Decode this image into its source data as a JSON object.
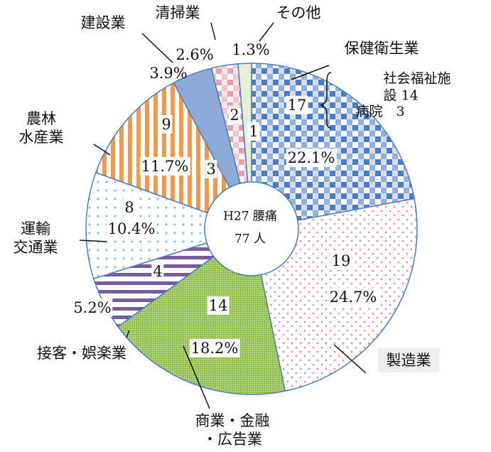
{
  "chart_data": {
    "type": "pie",
    "center_label": [
      "H27 腰痛",
      "77 人"
    ],
    "categories": [
      "保健衛生業",
      "製造業",
      "商業・金融\n・広告業",
      "接客・娯楽業",
      "運輸\n交通業",
      "農林\n水産業",
      "建設業",
      "清掃業",
      "その他"
    ],
    "values": [
      17,
      19,
      14,
      4,
      8,
      9,
      3,
      2,
      1
    ],
    "percent_labels": [
      "22.1%",
      "24.7%",
      "18.2%",
      "5.2%",
      "10.4%",
      "11.7%",
      "3.9%",
      "2.6%",
      "1.3%"
    ],
    "colors": [
      "#4a7cc4",
      "#e8868c",
      "#8fbf4a",
      "#7a5aa0",
      "#7fc6dc",
      "#f0994a",
      "#8eaad8",
      "#e8a0a8",
      "#b8d890"
    ],
    "annotations": [
      "社会福祉施設 14",
      "病院　3"
    ]
  }
}
